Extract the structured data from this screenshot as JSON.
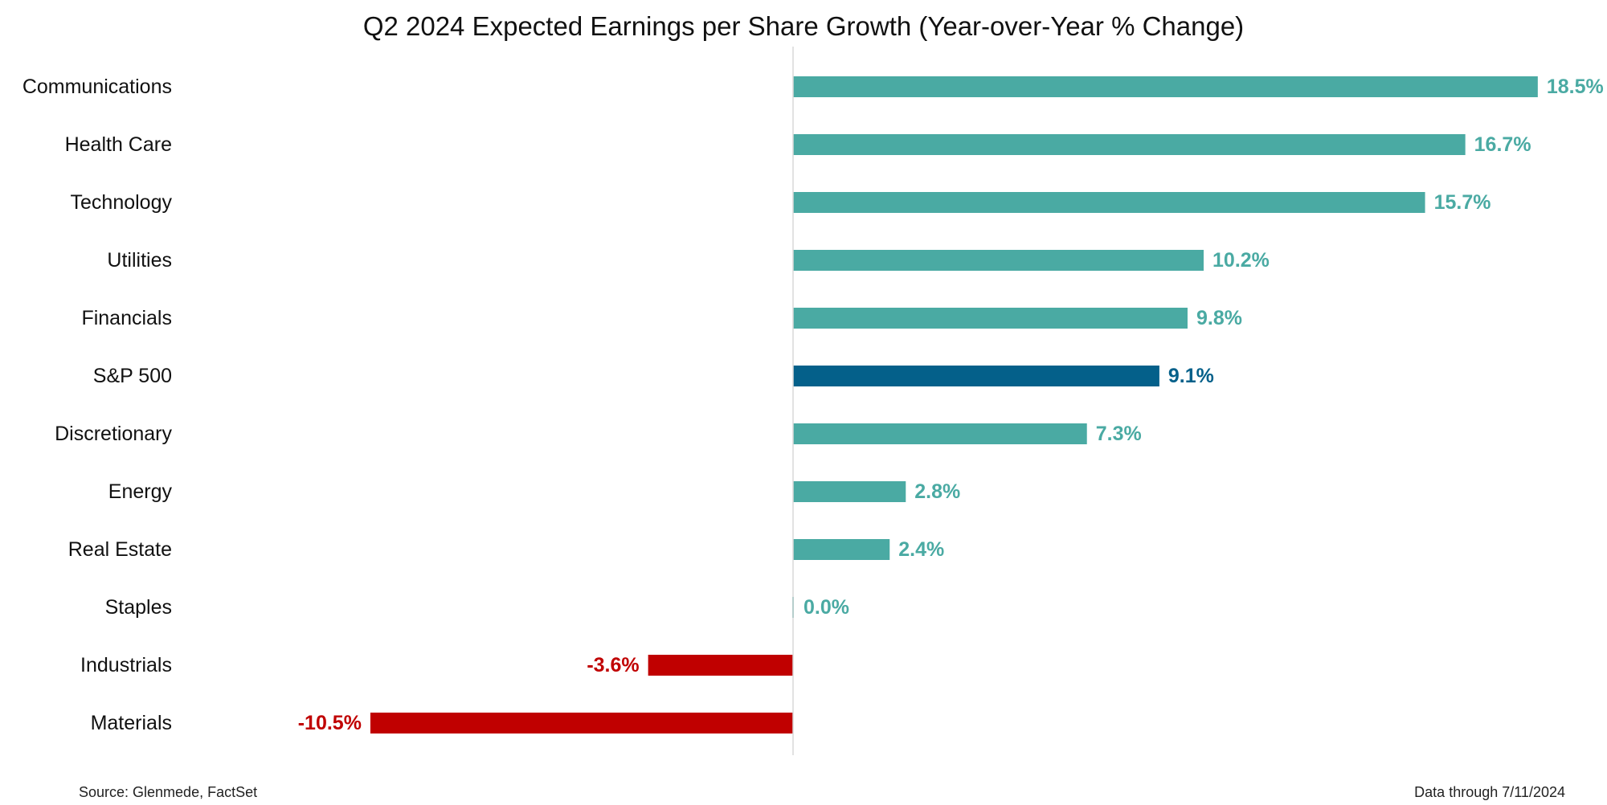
{
  "chart_data": {
    "type": "bar",
    "orientation": "horizontal",
    "title": "Q2 2024 Expected Earnings per Share Growth (Year-over-Year % Change)",
    "xlabel": "",
    "ylabel": "",
    "categories": [
      "Communications",
      "Health Care",
      "Technology",
      "Utilities",
      "Financials",
      "S&P 500",
      "Discretionary",
      "Energy",
      "Real Estate",
      "Staples",
      "Industrials",
      "Materials"
    ],
    "values": [
      18.5,
      16.7,
      15.7,
      10.2,
      9.8,
      9.1,
      7.3,
      2.8,
      2.4,
      0.0,
      -3.6,
      -10.5
    ],
    "value_labels": [
      "18.5%",
      "16.7%",
      "15.7%",
      "10.2%",
      "9.8%",
      "9.1%",
      "7.3%",
      "2.8%",
      "2.4%",
      "0.0%",
      "-3.6%",
      "-10.5%"
    ],
    "xlim": [
      -15,
      19
    ],
    "grid": false,
    "legend": "none",
    "colors": {
      "positive": "#4aaaa3",
      "benchmark": "#04608a",
      "negative": "#c00000",
      "zero_line": "#d9d9d9"
    },
    "highlight_category": "S&P 500"
  },
  "footer": {
    "source": "Source: Glenmede, FactSet",
    "date_note": "Data through 7/11/2024"
  }
}
